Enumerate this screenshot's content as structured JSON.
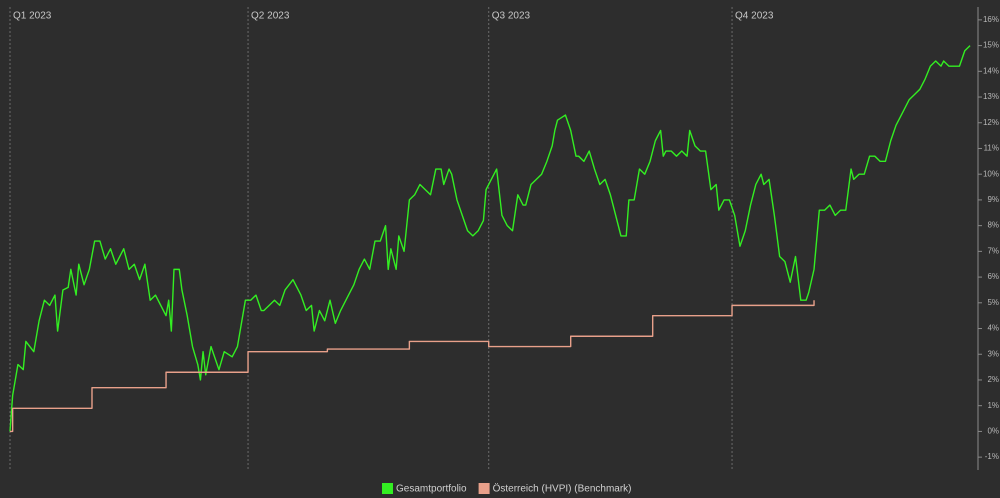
{
  "chart_data": {
    "type": "line",
    "xlim": [
      0,
      366
    ],
    "xticks": [
      {
        "value": 0,
        "label": "Q1 2023"
      },
      {
        "value": 90,
        "label": "Q2 2023"
      },
      {
        "value": 181,
        "label": "Q3 2023"
      },
      {
        "value": 273,
        "label": "Q4 2023"
      }
    ],
    "ylim": [
      -1.5,
      16.5
    ],
    "yticks": [
      {
        "value": -1,
        "label": "-1%"
      },
      {
        "value": 0,
        "label": "0%"
      },
      {
        "value": 1,
        "label": "1%"
      },
      {
        "value": 2,
        "label": "2%"
      },
      {
        "value": 3,
        "label": "3%"
      },
      {
        "value": 4,
        "label": "4%"
      },
      {
        "value": 5,
        "label": "5%"
      },
      {
        "value": 6,
        "label": "6%"
      },
      {
        "value": 7,
        "label": "7%"
      },
      {
        "value": 8,
        "label": "8%"
      },
      {
        "value": 9,
        "label": "9%"
      },
      {
        "value": 10,
        "label": "10%"
      },
      {
        "value": 11,
        "label": "11%"
      },
      {
        "value": 12,
        "label": "12%"
      },
      {
        "value": 13,
        "label": "13%"
      },
      {
        "value": 14,
        "label": "14%"
      },
      {
        "value": 15,
        "label": "15%"
      },
      {
        "value": 16,
        "label": "16%"
      }
    ],
    "series": [
      {
        "name": "Gesamtportfolio",
        "color": "#33ee22",
        "step": false,
        "x": [
          0,
          1,
          3,
          5,
          6,
          9,
          11,
          13,
          15,
          17,
          18,
          20,
          22,
          23,
          25,
          26,
          28,
          30,
          32,
          34,
          36,
          38,
          40,
          42,
          43,
          45,
          47,
          49,
          51,
          53,
          55,
          57,
          59,
          60,
          61,
          62,
          64,
          65,
          67,
          69,
          71,
          72,
          73,
          74,
          76,
          79,
          81,
          84,
          86,
          89,
          91,
          93,
          95,
          96,
          98,
          100,
          102,
          104,
          107,
          109,
          110,
          112,
          114,
          115,
          117,
          119,
          121,
          123,
          125,
          127,
          129,
          130,
          132,
          134,
          136,
          138,
          140,
          142,
          143,
          144,
          146,
          147,
          149,
          151,
          153,
          155,
          157,
          159,
          161,
          163,
          164,
          166,
          167,
          169,
          171,
          173,
          175,
          177,
          179,
          180,
          182,
          184,
          186,
          188,
          190,
          192,
          194,
          195,
          197,
          199,
          201,
          203,
          205,
          206,
          207,
          210,
          212,
          214,
          215,
          217,
          219,
          221,
          223,
          225,
          227,
          229,
          231,
          233,
          234,
          236,
          238,
          240,
          242,
          244,
          246,
          247,
          248,
          250,
          252,
          254,
          256,
          257,
          259,
          261,
          263,
          265,
          267,
          268,
          270,
          272,
          274,
          276,
          278,
          280,
          282,
          284,
          285,
          287,
          289,
          291,
          293,
          295,
          297,
          299,
          301,
          302,
          304,
          306,
          308,
          310,
          312,
          314,
          316,
          318,
          319,
          321,
          323,
          325,
          327,
          329,
          331,
          333,
          335,
          336,
          338,
          340,
          342,
          344,
          346,
          348,
          350,
          352,
          353,
          355,
          357,
          359,
          361,
          363
        ],
        "values": [
          0,
          1.4,
          2.6,
          2.4,
          3.5,
          3.1,
          4.3,
          5.1,
          4.9,
          5.3,
          3.9,
          5.5,
          5.6,
          6.3,
          5.3,
          6.5,
          5.7,
          6.3,
          7.4,
          7.4,
          6.7,
          7.1,
          6.5,
          6.9,
          7.1,
          6.3,
          6.5,
          5.9,
          6.5,
          5.1,
          5.3,
          4.9,
          4.5,
          5.1,
          3.9,
          6.3,
          6.3,
          5.5,
          4.5,
          3.3,
          2.6,
          2.0,
          3.1,
          2.2,
          3.3,
          2.4,
          3.1,
          2.9,
          3.3,
          5.1,
          5.1,
          5.3,
          4.7,
          4.7,
          4.9,
          5.1,
          4.9,
          5.5,
          5.9,
          5.5,
          5.3,
          4.7,
          4.9,
          3.9,
          4.7,
          4.3,
          5.1,
          4.2,
          4.7,
          5.1,
          5.5,
          5.7,
          6.3,
          6.7,
          6.3,
          7.4,
          7.4,
          8.0,
          6.3,
          7.1,
          6.3,
          7.6,
          7.0,
          9.0,
          9.2,
          9.6,
          9.4,
          9.2,
          10.2,
          10.2,
          9.6,
          10.2,
          10.0,
          9.0,
          8.4,
          7.8,
          7.6,
          7.8,
          8.2,
          9.4,
          9.8,
          10.2,
          8.4,
          8.0,
          7.8,
          9.2,
          8.8,
          8.8,
          9.6,
          9.8,
          10.0,
          10.5,
          11.1,
          11.7,
          12.1,
          12.3,
          11.7,
          10.7,
          10.7,
          10.5,
          10.9,
          10.2,
          9.6,
          9.8,
          9.2,
          8.4,
          7.6,
          7.6,
          9.0,
          9.0,
          10.2,
          10.0,
          10.5,
          11.3,
          11.7,
          10.7,
          10.9,
          10.9,
          10.7,
          10.9,
          10.7,
          11.7,
          11.1,
          10.9,
          10.9,
          9.4,
          9.6,
          8.6,
          9.0,
          9.0,
          8.4,
          7.2,
          7.8,
          8.8,
          9.6,
          10.0,
          9.6,
          9.8,
          8.4,
          6.8,
          6.6,
          5.8,
          6.8,
          5.1,
          5.1,
          5.4,
          6.3,
          8.6,
          8.6,
          8.8,
          8.4,
          8.6,
          8.6,
          10.2,
          9.8,
          10.0,
          10.0,
          10.7,
          10.7,
          10.5,
          10.5,
          11.3,
          11.9,
          12.1,
          12.5,
          12.9,
          13.1,
          13.3,
          13.7,
          14.2,
          14.4,
          14.2,
          14.4,
          14.2,
          14.2,
          14.2,
          14.8,
          15.0
        ]
      },
      {
        "name": "Österreich (HVPI) (Benchmark)",
        "color": "#e8a08a",
        "step": true,
        "x": [
          0,
          1,
          31,
          59,
          90,
          120,
          151,
          181,
          212,
          243,
          273,
          304
        ],
        "values": [
          0,
          0.9,
          1.7,
          2.3,
          3.1,
          3.2,
          3.5,
          3.3,
          3.7,
          4.5,
          4.9,
          5.1
        ]
      }
    ]
  }
}
